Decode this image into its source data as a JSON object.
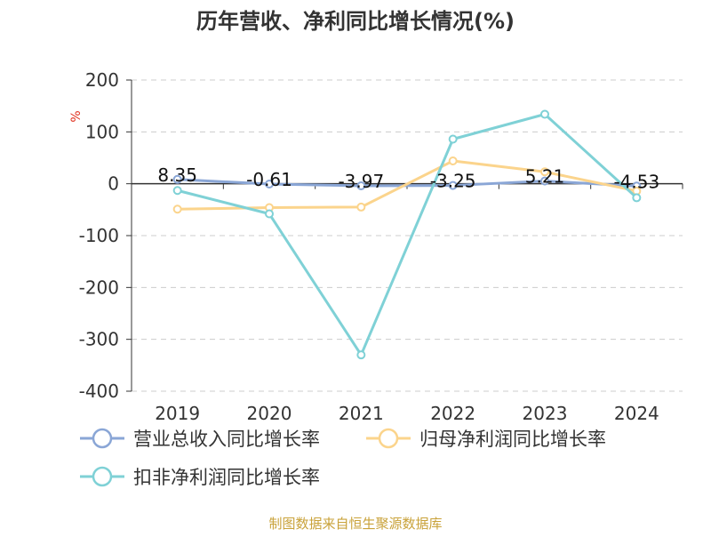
{
  "chart_data": {
    "type": "line",
    "title": "历年营收、净利同比增长情况(%)",
    "ylabel": "%",
    "categories": [
      "2019",
      "2020",
      "2021",
      "2022",
      "2023",
      "2024"
    ],
    "ylim": [
      -400,
      200
    ],
    "yticks": [
      "200",
      "100",
      "0",
      "-100",
      "-200",
      "-300",
      "-400"
    ],
    "grid": true,
    "legend_position": "bottom",
    "series": [
      {
        "name": "营业总收入同比增长率",
        "color": "#8aa6d6",
        "values": [
          8.35,
          -0.61,
          -3.97,
          -3.25,
          5.21,
          -4.53
        ],
        "labels": [
          "8.35",
          "-0.61",
          "-3.97",
          "-3.25",
          "5.21",
          "-4.53"
        ]
      },
      {
        "name": "归母净利润同比增长率",
        "color": "#fbd48c",
        "values": [
          -49,
          -46,
          -45,
          44,
          23,
          -14
        ]
      },
      {
        "name": "扣非净利润同比增长率",
        "color": "#7fd1d6",
        "values": [
          -13,
          -58,
          -330,
          86,
          134,
          -27
        ]
      }
    ]
  },
  "source": "制图数据来自恒生聚源数据库",
  "colors": {
    "title": "#333333",
    "axis_text": "#333333",
    "ylabel": "#e0301e",
    "source": "#c9a23a",
    "grid": "#cccccc"
  }
}
